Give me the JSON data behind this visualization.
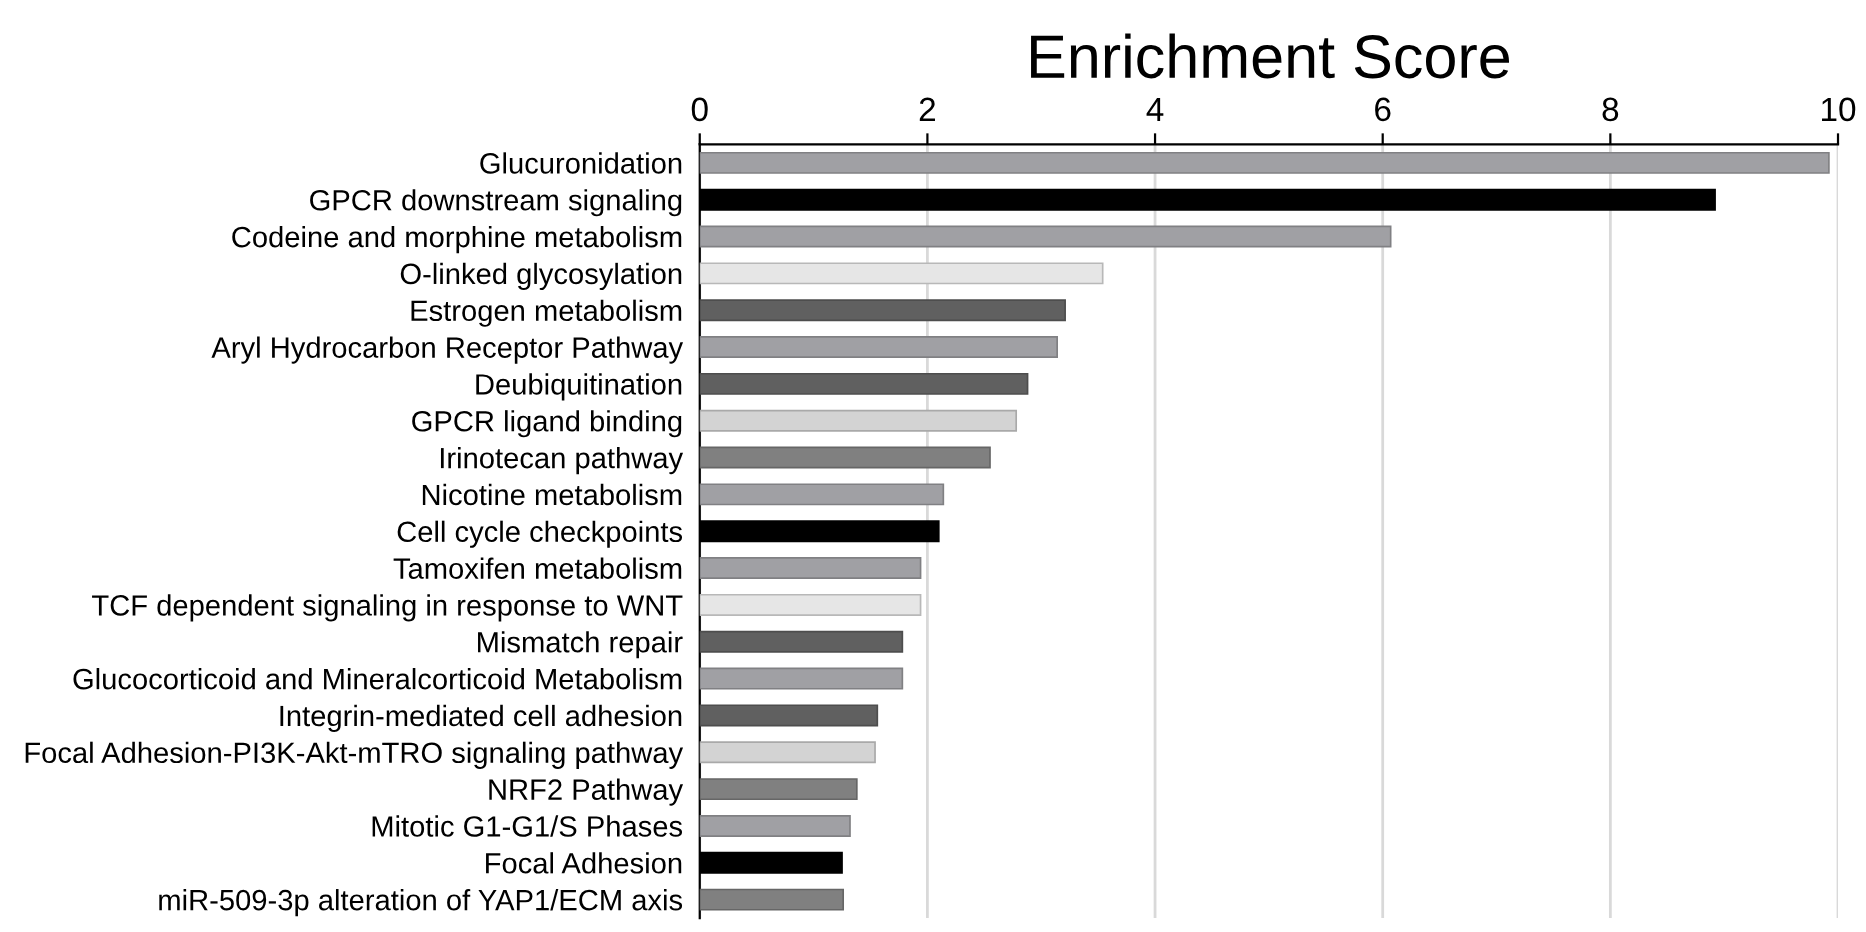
{
  "chart_data": {
    "type": "bar",
    "orientation": "horizontal",
    "title": "Enrichment Score",
    "categories": [
      "Glucuronidation",
      "GPCR downstream signaling",
      "Codeine and morphine metabolism",
      "O-linked glycosylation",
      "Estrogen metabolism",
      "Aryl Hydrocarbon Receptor Pathway",
      "Deubiquitination",
      "GPCR ligand binding",
      "Irinotecan pathway",
      "Nicotine metabolism",
      "Cell cycle checkpoints",
      "Tamoxifen metabolism",
      "TCF dependent signaling in response to WNT",
      "Mismatch repair",
      "Glucocorticoid and Mineralcorticoid Metabolism",
      "Integrin-mediated cell adhesion",
      "Focal Adhesion-PI3K-Akt-mTRO signaling pathway",
      "NRF2 Pathway",
      "Mitotic G1-G1/S Phases",
      "Focal Adhesion",
      "miR-509-3p alteration of YAP1/ECM axis"
    ],
    "values": [
      9.92,
      8.92,
      6.07,
      3.54,
      3.21,
      3.14,
      2.88,
      2.78,
      2.55,
      2.14,
      2.1,
      1.94,
      1.94,
      1.78,
      1.78,
      1.56,
      1.54,
      1.38,
      1.32,
      1.25,
      1.26
    ],
    "colors": [
      "#a0a0a4",
      "#000000",
      "#a0a0a4",
      "#e6e6e6",
      "#606060",
      "#a0a0a4",
      "#606060",
      "#d3d3d3",
      "#808080",
      "#a0a0a4",
      "#000000",
      "#a0a0a4",
      "#e6e6e6",
      "#606060",
      "#a0a0a4",
      "#606060",
      "#d3d3d3",
      "#808080",
      "#a0a0a4",
      "#000000",
      "#808080"
    ],
    "xlim": [
      0,
      10
    ],
    "xticks": [
      0,
      2,
      4,
      6,
      8,
      10
    ],
    "grid": "x"
  }
}
